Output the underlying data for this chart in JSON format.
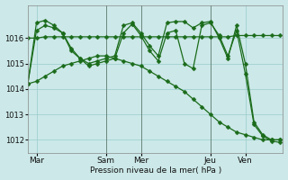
{
  "background_color": "#cce8e8",
  "grid_color": "#99cccc",
  "line_color": "#1a6b1a",
  "ylabel": "Pression niveau de la mer( hPa )",
  "ylim": [
    1011.5,
    1017.3
  ],
  "yticks": [
    1012,
    1013,
    1014,
    1015,
    1016
  ],
  "xlim": [
    0,
    176
  ],
  "xtick_positions": [
    6,
    54,
    78,
    126,
    150
  ],
  "xtick_labels": [
    "Mar",
    "Sam",
    "Mer",
    "Jeu",
    "Ven"
  ],
  "vlines": [
    54,
    78,
    126
  ],
  "series_flat_x": [
    0,
    6,
    12,
    18,
    24,
    30,
    36,
    42,
    48,
    54,
    60,
    66,
    72,
    78,
    84,
    90,
    96,
    102,
    108,
    114,
    120,
    126,
    132,
    138,
    144,
    150,
    156,
    162,
    168,
    174
  ],
  "series_flat_y": [
    1016.0,
    1016.0,
    1016.05,
    1016.05,
    1016.05,
    1016.05,
    1016.05,
    1016.05,
    1016.05,
    1016.05,
    1016.05,
    1016.05,
    1016.05,
    1016.05,
    1016.05,
    1016.05,
    1016.05,
    1016.05,
    1016.05,
    1016.05,
    1016.05,
    1016.05,
    1016.05,
    1016.05,
    1016.1,
    1016.1,
    1016.1,
    1016.1,
    1016.1,
    1016.1
  ],
  "series_diag_x": [
    0,
    6,
    12,
    18,
    24,
    30,
    36,
    42,
    48,
    54,
    60,
    66,
    72,
    78,
    84,
    90,
    96,
    102,
    108,
    114,
    120,
    126,
    132,
    138,
    144,
    150,
    156,
    162,
    168,
    174
  ],
  "series_diag_y": [
    1014.2,
    1014.3,
    1014.5,
    1014.7,
    1014.9,
    1015.0,
    1015.1,
    1015.2,
    1015.3,
    1015.3,
    1015.2,
    1015.1,
    1015.0,
    1014.9,
    1014.7,
    1014.5,
    1014.3,
    1014.1,
    1013.9,
    1013.6,
    1013.3,
    1013.0,
    1012.7,
    1012.5,
    1012.3,
    1012.2,
    1012.1,
    1012.0,
    1012.0,
    1012.0
  ],
  "series_jagged1_x": [
    0,
    6,
    12,
    18,
    24,
    30,
    36,
    42,
    48,
    54,
    60,
    66,
    72,
    78,
    84,
    90,
    96,
    102,
    108,
    114,
    120,
    126,
    132,
    138,
    144,
    150,
    156,
    162,
    168,
    174
  ],
  "series_jagged1_y": [
    1014.2,
    1016.6,
    1016.7,
    1016.5,
    1016.2,
    1015.6,
    1015.2,
    1015.0,
    1015.1,
    1015.2,
    1015.3,
    1016.5,
    1016.6,
    1016.2,
    1015.7,
    1015.3,
    1016.6,
    1016.65,
    1016.65,
    1016.4,
    1016.6,
    1016.65,
    1016.0,
    1015.2,
    1016.5,
    1015.0,
    1012.7,
    1012.2,
    1012.0,
    1012.0
  ],
  "series_jagged2_x": [
    0,
    6,
    12,
    18,
    24,
    30,
    36,
    42,
    48,
    54,
    60,
    66,
    72,
    78,
    84,
    90,
    96,
    102,
    108,
    114,
    120,
    126,
    132,
    138,
    144,
    150,
    156,
    162,
    168,
    174
  ],
  "series_jagged2_y": [
    1014.2,
    1016.3,
    1016.5,
    1016.4,
    1016.2,
    1015.5,
    1015.2,
    1014.9,
    1015.0,
    1015.1,
    1015.2,
    1016.2,
    1016.55,
    1016.1,
    1015.5,
    1015.1,
    1016.2,
    1016.3,
    1015.0,
    1014.8,
    1016.5,
    1016.6,
    1016.1,
    1015.3,
    1016.3,
    1014.6,
    1012.6,
    1012.15,
    1011.95,
    1011.9
  ]
}
